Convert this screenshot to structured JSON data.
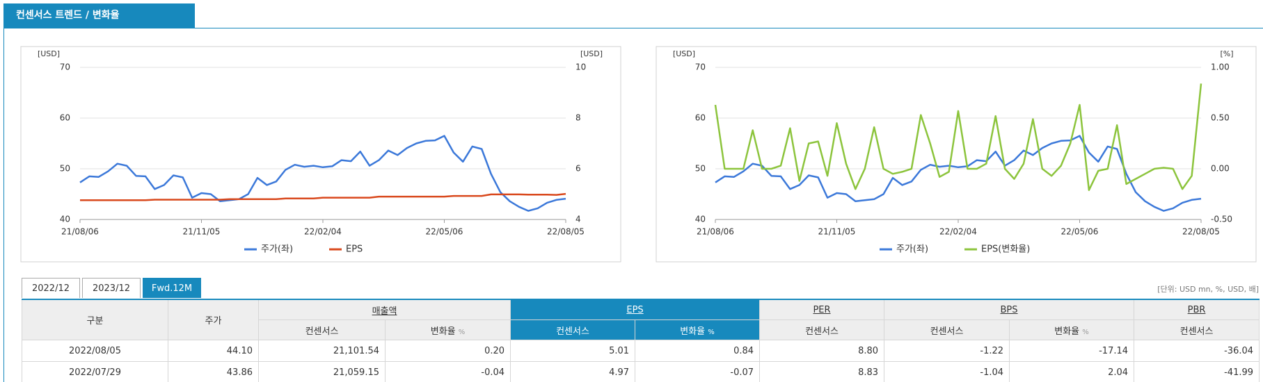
{
  "header": {
    "title": "컨센서스 트렌드 / 변화율"
  },
  "chart_data": [
    {
      "type": "line",
      "categories": [
        "21/08/06",
        null,
        null,
        null,
        null,
        null,
        null,
        null,
        null,
        null,
        null,
        null,
        null,
        "21/11/05",
        null,
        null,
        null,
        null,
        null,
        null,
        null,
        null,
        null,
        null,
        null,
        null,
        "22/02/04",
        null,
        null,
        null,
        null,
        null,
        null,
        null,
        null,
        null,
        null,
        null,
        null,
        "22/05/06",
        null,
        null,
        null,
        null,
        null,
        null,
        null,
        null,
        null,
        null,
        null,
        null,
        "22/08/05"
      ],
      "ylabel": "[USD]",
      "y2label": "[USD]",
      "ylim": [
        40,
        70
      ],
      "yticks": [
        40,
        50,
        60,
        70
      ],
      "y2lim": [
        4,
        10
      ],
      "y2ticks": [
        4,
        6,
        8,
        10
      ],
      "grid": true,
      "series": [
        {
          "name": "주가(좌)",
          "color": "#3b78d9",
          "values": [
            47.3,
            48.5,
            48.4,
            49.5,
            51.0,
            50.6,
            48.6,
            48.5,
            46.0,
            46.8,
            48.7,
            48.3,
            44.3,
            45.2,
            45.0,
            43.6,
            43.8,
            44.0,
            45.0,
            48.2,
            46.8,
            47.5,
            49.8,
            50.8,
            50.4,
            50.6,
            50.3,
            50.5,
            51.7,
            51.5,
            53.4,
            50.6,
            51.7,
            53.6,
            52.7,
            54.1,
            55.0,
            55.5,
            55.6,
            56.5,
            53.2,
            51.4,
            54.4,
            53.9,
            49.0,
            45.4,
            43.6,
            42.5,
            41.7,
            42.2,
            43.3,
            43.86,
            44.1
          ]
        },
        {
          "name": "EPS",
          "color": "#d9481c",
          "axis": "y2",
          "values": [
            4.76,
            4.76,
            4.76,
            4.76,
            4.76,
            4.76,
            4.76,
            4.76,
            4.78,
            4.78,
            4.78,
            4.78,
            4.78,
            4.78,
            4.78,
            4.78,
            4.8,
            4.8,
            4.8,
            4.8,
            4.8,
            4.8,
            4.83,
            4.83,
            4.83,
            4.83,
            4.86,
            4.86,
            4.86,
            4.86,
            4.86,
            4.86,
            4.9,
            4.9,
            4.9,
            4.9,
            4.9,
            4.9,
            4.9,
            4.9,
            4.93,
            4.93,
            4.93,
            4.93,
            4.99,
            4.99,
            4.99,
            4.99,
            4.98,
            4.98,
            4.98,
            4.97,
            5.01
          ]
        }
      ]
    },
    {
      "type": "line",
      "categories": [
        "21/08/06",
        null,
        null,
        null,
        null,
        null,
        null,
        null,
        null,
        null,
        null,
        null,
        null,
        "21/11/05",
        null,
        null,
        null,
        null,
        null,
        null,
        null,
        null,
        null,
        null,
        null,
        null,
        "22/02/04",
        null,
        null,
        null,
        null,
        null,
        null,
        null,
        null,
        null,
        null,
        null,
        null,
        "22/05/06",
        null,
        null,
        null,
        null,
        null,
        null,
        null,
        null,
        null,
        null,
        null,
        null,
        "22/08/05"
      ],
      "ylabel": "[USD]",
      "y2label": "[%]",
      "ylim": [
        40,
        70
      ],
      "yticks": [
        40,
        50,
        60,
        70
      ],
      "y2lim": [
        -0.5,
        1
      ],
      "y2ticks": [
        {
          "value": -0.5,
          "label": "-0.50"
        },
        {
          "value": 0,
          "label": "0.00"
        },
        {
          "value": 0.5,
          "label": "0.50"
        },
        {
          "value": 1,
          "label": "1.00"
        }
      ],
      "grid": true,
      "series": [
        {
          "name": "주가(좌)",
          "color": "#3b78d9",
          "values": [
            47.3,
            48.5,
            48.4,
            49.5,
            51.0,
            50.6,
            48.6,
            48.5,
            46.0,
            46.8,
            48.7,
            48.3,
            44.3,
            45.2,
            45.0,
            43.6,
            43.8,
            44.0,
            45.0,
            48.2,
            46.8,
            47.5,
            49.8,
            50.8,
            50.4,
            50.6,
            50.3,
            50.5,
            51.7,
            51.5,
            53.4,
            50.6,
            51.7,
            53.6,
            52.7,
            54.1,
            55.0,
            55.5,
            55.6,
            56.5,
            53.2,
            51.4,
            54.4,
            53.9,
            49.0,
            45.4,
            43.6,
            42.5,
            41.7,
            42.2,
            43.3,
            43.86,
            44.1
          ]
        },
        {
          "name": "EPS(변화율)",
          "color": "#8cc43c",
          "axis": "y2",
          "values": [
            0.63,
            0,
            0,
            0,
            0.38,
            0,
            0,
            0.03,
            0.4,
            -0.12,
            0.25,
            0.27,
            -0.07,
            0.45,
            0.05,
            -0.2,
            0,
            0.41,
            0,
            -0.05,
            -0.03,
            0,
            0.53,
            0.25,
            -0.08,
            -0.03,
            0.57,
            0,
            0,
            0.05,
            0.52,
            0,
            -0.1,
            0.05,
            0.49,
            0,
            -0.07,
            0.03,
            0.25,
            0.63,
            -0.21,
            -0.02,
            0,
            0.43,
            -0.15,
            -0.1,
            -0.05,
            0,
            0.01,
            0,
            -0.2,
            -0.07,
            0.84
          ]
        }
      ]
    }
  ],
  "table": {
    "tabs": [
      "2022/12",
      "2023/12",
      "Fwd.12M"
    ],
    "active_tab": 2,
    "unit": "[단위: USD mn, %, USD, 배]",
    "columns": {
      "category": "구분",
      "price": "주가",
      "sales": "매출액",
      "eps": "EPS",
      "per": "PER",
      "bps": "BPS",
      "pbr": "PBR",
      "consensus": "컨센서스",
      "change": "변화율",
      "percent": "%"
    },
    "rows": [
      [
        "2022/08/05",
        "44.10",
        "21,101.54",
        "0.20",
        "5.01",
        "0.84",
        "8.80",
        "-1.22",
        "-17.14",
        "-36.04"
      ],
      [
        "2022/07/29",
        "43.86",
        "21,059.15",
        "-0.04",
        "4.97",
        "-0.07",
        "8.83",
        "-1.04",
        "2.04",
        "-41.99"
      ]
    ]
  }
}
